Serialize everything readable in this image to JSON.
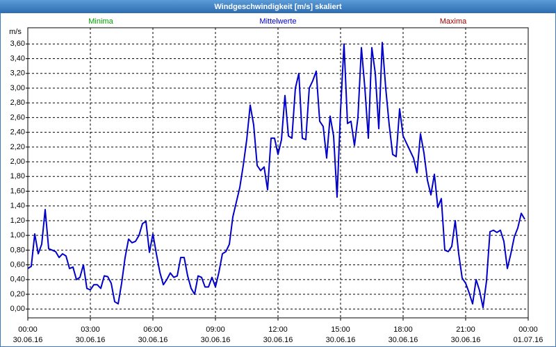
{
  "chart_data": {
    "type": "line",
    "title": "Windgeschwindigkeit [m/s] skaliert",
    "y_unit": "m/s",
    "x": [
      0,
      10,
      20,
      30,
      40,
      50,
      60,
      70,
      80,
      90,
      100,
      110,
      120,
      130,
      140,
      150,
      160,
      170,
      180,
      190,
      200,
      210,
      220,
      230,
      240,
      250,
      260,
      270,
      280,
      290,
      300,
      310,
      320,
      330,
      340,
      350,
      360,
      370,
      380,
      390,
      400,
      410,
      420,
      430,
      440,
      450,
      460,
      470,
      480,
      490,
      500,
      510,
      520,
      530,
      540,
      550,
      560,
      570,
      580,
      590,
      600,
      610,
      620,
      630,
      640,
      650,
      660,
      670,
      680,
      690,
      700,
      710,
      720,
      730,
      740,
      750,
      760,
      770,
      780,
      790,
      800,
      810,
      820,
      830,
      840,
      850,
      860,
      870,
      880,
      890,
      900,
      910,
      920,
      930,
      940,
      950,
      960,
      970,
      980,
      990,
      1000,
      1010,
      1020,
      1030,
      1040,
      1050,
      1060,
      1070,
      1080,
      1090,
      1100,
      1110,
      1120,
      1130,
      1140,
      1150,
      1160,
      1170,
      1180,
      1190,
      1200,
      1210,
      1220,
      1230,
      1240,
      1250,
      1260,
      1270,
      1280,
      1290,
      1300,
      1310,
      1320,
      1330,
      1340,
      1350,
      1360,
      1370,
      1380,
      1390,
      1400,
      1410,
      1420,
      1430
    ],
    "series": [
      {
        "name": "Mittelwerte",
        "color": "#0000c8",
        "values": [
          0.55,
          0.58,
          1.02,
          0.75,
          0.88,
          1.35,
          0.82,
          0.8,
          0.78,
          0.7,
          0.75,
          0.72,
          0.55,
          0.57,
          0.4,
          0.43,
          0.6,
          0.28,
          0.26,
          0.33,
          0.33,
          0.28,
          0.45,
          0.44,
          0.35,
          0.1,
          0.07,
          0.35,
          0.7,
          0.95,
          0.9,
          0.92,
          1.0,
          1.16,
          1.19,
          0.77,
          1.02,
          0.75,
          0.5,
          0.33,
          0.4,
          0.49,
          0.43,
          0.45,
          0.7,
          0.7,
          0.45,
          0.28,
          0.2,
          0.45,
          0.43,
          0.3,
          0.3,
          0.43,
          0.3,
          0.5,
          0.75,
          0.78,
          0.88,
          1.25,
          1.45,
          1.65,
          1.95,
          2.3,
          2.77,
          2.5,
          1.95,
          1.88,
          1.93,
          1.62,
          2.32,
          2.32,
          2.1,
          2.3,
          2.9,
          2.35,
          2.32,
          3.0,
          3.2,
          2.32,
          2.3,
          3.0,
          3.1,
          3.23,
          2.55,
          2.48,
          2.05,
          2.62,
          2.35,
          1.52,
          2.7,
          3.6,
          2.52,
          2.55,
          2.22,
          2.6,
          3.55,
          3.0,
          2.32,
          3.55,
          3.2,
          2.45,
          3.62,
          3.0,
          2.5,
          2.1,
          2.07,
          2.72,
          2.35,
          2.25,
          2.15,
          2.05,
          1.85,
          2.38,
          2.12,
          1.75,
          1.55,
          1.83,
          1.38,
          1.5,
          0.8,
          0.78,
          0.85,
          1.2,
          0.75,
          0.42,
          0.35,
          0.22,
          0.07,
          0.4,
          0.25,
          0.02,
          0.38,
          1.05,
          1.07,
          1.04,
          1.07,
          0.92,
          0.55,
          0.75,
          0.98,
          1.1,
          1.3,
          1.22
        ]
      }
    ],
    "hidden_series": [
      {
        "name": "Minima",
        "color": "#00a000"
      },
      {
        "name": "Maxima",
        "color": "#a00000"
      }
    ],
    "xlim": [
      0,
      1440
    ],
    "xticks": [
      {
        "value": 0,
        "label": "00:00",
        "date": "30.06.16"
      },
      {
        "value": 180,
        "label": "03:00",
        "date": "30.06.16"
      },
      {
        "value": 360,
        "label": "06:00",
        "date": "30.06.16"
      },
      {
        "value": 540,
        "label": "09:00",
        "date": "30.06.16"
      },
      {
        "value": 720,
        "label": "12:00",
        "date": "30.06.16"
      },
      {
        "value": 900,
        "label": "15:00",
        "date": "30.06.16"
      },
      {
        "value": 1080,
        "label": "18:00",
        "date": "30.06.16"
      },
      {
        "value": 1260,
        "label": "21:00",
        "date": "30.06.16"
      },
      {
        "value": 1440,
        "label": "00:00",
        "date": "01.07.16"
      }
    ],
    "ylim": [
      -0.12,
      3.82
    ],
    "yticks": [
      {
        "value": 0,
        "label": "0,00"
      },
      {
        "value": 0.2,
        "label": "0,20"
      },
      {
        "value": 0.4,
        "label": "0,40"
      },
      {
        "value": 0.6,
        "label": "0,60"
      },
      {
        "value": 0.8,
        "label": "0,80"
      },
      {
        "value": 1.0,
        "label": "1,00"
      },
      {
        "value": 1.2,
        "label": "1,20"
      },
      {
        "value": 1.4,
        "label": "1,40"
      },
      {
        "value": 1.6,
        "label": "1,60"
      },
      {
        "value": 1.8,
        "label": "1,80"
      },
      {
        "value": 2.0,
        "label": "2,00"
      },
      {
        "value": 2.2,
        "label": "2,20"
      },
      {
        "value": 2.4,
        "label": "2,40"
      },
      {
        "value": 2.6,
        "label": "2,60"
      },
      {
        "value": 2.8,
        "label": "2,80"
      },
      {
        "value": 3.0,
        "label": "3,00"
      },
      {
        "value": 3.2,
        "label": "3,20"
      },
      {
        "value": 3.4,
        "label": "3,40"
      },
      {
        "value": 3.6,
        "label": "3,60"
      }
    ],
    "grid": true
  }
}
